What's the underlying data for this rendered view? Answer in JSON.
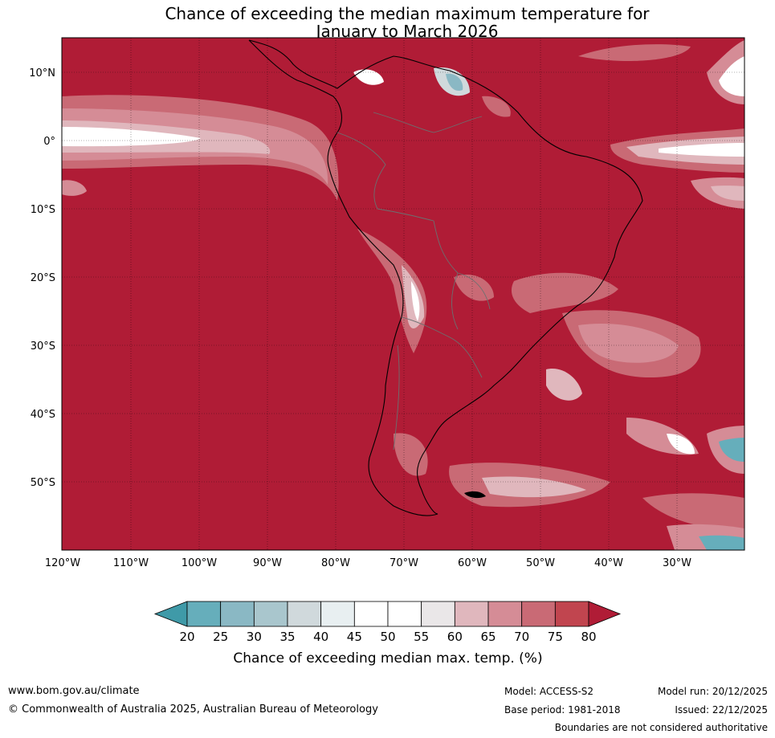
{
  "title_line1": "Chance of exceeding the median maximum temperature for",
  "title_line2": "January to March 2026",
  "map": {
    "lon_ticks": [
      "120°W",
      "110°W",
      "100°W",
      "90°W",
      "80°W",
      "70°W",
      "60°W",
      "50°W",
      "40°W",
      "30°W"
    ],
    "lat_ticks": [
      "10°N",
      "0°",
      "10°S",
      "20°S",
      "30°S",
      "40°S",
      "50°S"
    ]
  },
  "colorbar": {
    "ticks": [
      "20",
      "25",
      "30",
      "35",
      "40",
      "45",
      "50",
      "55",
      "60",
      "65",
      "70",
      "75",
      "80"
    ],
    "colors": [
      "#3f9aa8",
      "#66aebb",
      "#8ab8c4",
      "#a9c6cd",
      "#d0d9dc",
      "#e8eff1",
      "#ffffff",
      "#ffffff",
      "#eae7e8",
      "#e0b7bd",
      "#d58c96",
      "#c96a75",
      "#c1454f",
      "#b01c36"
    ],
    "label": "Chance of exceeding median max. temp. (%)"
  },
  "colors": {
    "high": "#b01c36",
    "mid": "#c96a75",
    "light": "#e0b7bd",
    "white": "#ffffff",
    "blue": "#8ab8c4"
  },
  "footer": {
    "website": "www.bom.gov.au/climate",
    "copyright": "© Commonwealth of Australia 2025, Australian Bureau of Meteorology",
    "model": "Model: ACCESS-S2",
    "base_period": "Base period: 1981-2018",
    "model_run": "Model run: 20/12/2025",
    "issued": "Issued: 22/12/2025",
    "disclaimer": "Boundaries are not considered authoritative"
  }
}
